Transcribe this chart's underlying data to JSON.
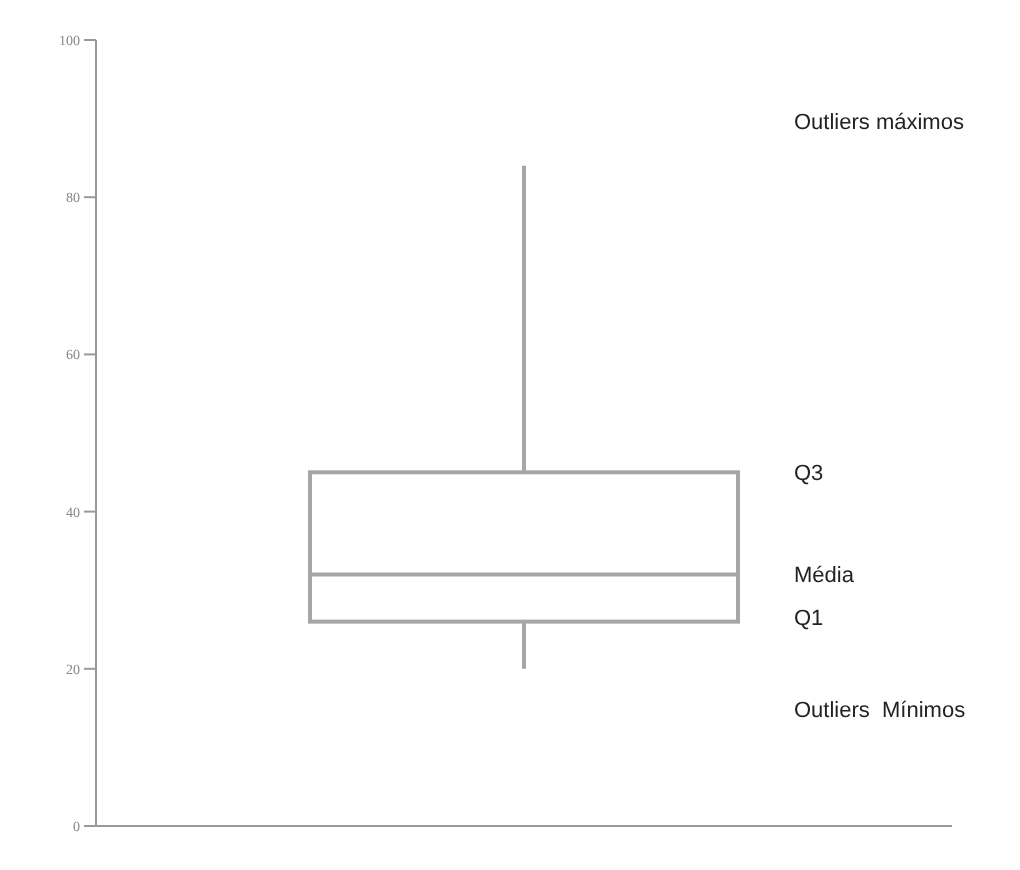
{
  "chart_data": {
    "type": "box",
    "categories": [
      null
    ],
    "boxes": [
      {
        "low": 20,
        "q1": 26,
        "median": 32,
        "q3": 45,
        "high": 84
      }
    ],
    "color": "#a6a6a6",
    "ylim": [
      0,
      100
    ],
    "yticks": [
      0,
      20,
      40,
      60,
      80,
      100
    ],
    "grid": false,
    "annotations": [
      "Outliers máximos",
      "Q3",
      "Média",
      "Q1",
      "Outliers  Mínimos"
    ]
  }
}
